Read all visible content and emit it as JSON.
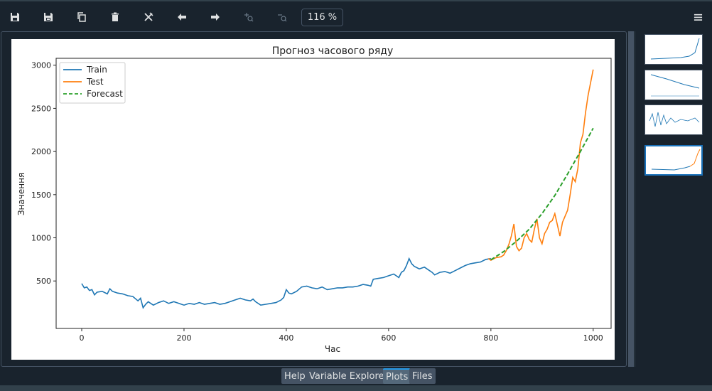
{
  "toolbar": {
    "buttons": [
      {
        "name": "save-icon",
        "label": "Save"
      },
      {
        "name": "save-all-icon",
        "label": "Save all"
      },
      {
        "name": "copy-icon",
        "label": "Copy"
      },
      {
        "name": "trash-icon",
        "label": "Remove"
      },
      {
        "name": "remove-all-icon",
        "label": "Remove all"
      },
      {
        "name": "arrow-left-icon",
        "label": "Previous"
      },
      {
        "name": "arrow-right-icon",
        "label": "Next"
      },
      {
        "name": "zoom-in-icon",
        "label": "Zoom in"
      },
      {
        "name": "zoom-out-icon",
        "label": "Zoom out"
      }
    ],
    "zoom": "116 %",
    "menu_icon": "hamburger-menu-icon"
  },
  "tabs": [
    {
      "label": "Help",
      "active": false
    },
    {
      "label": "Variable Explorer",
      "active": false
    },
    {
      "label": "Plots",
      "active": true
    },
    {
      "label": "Files",
      "active": false
    }
  ],
  "colors": {
    "train": "#1f77b4",
    "test": "#ff7f0e",
    "forecast": "#2ca02c",
    "accent": "#259ae9",
    "panel_bg": "#19232d"
  },
  "chart_data": {
    "type": "line",
    "title": "Прогноз часового ряду",
    "xlabel": "Час",
    "ylabel": "Значення",
    "xlim": [
      -50,
      1035
    ],
    "ylim": [
      -50,
      3080
    ],
    "xticks": [
      0,
      200,
      400,
      600,
      800,
      1000
    ],
    "yticks": [
      500,
      1000,
      1500,
      2000,
      2500,
      3000
    ],
    "legend_position": "upper-left",
    "grid": false,
    "series": [
      {
        "name": "Train",
        "style": "solid",
        "x": [
          0,
          5,
          10,
          15,
          20,
          25,
          30,
          40,
          50,
          55,
          60,
          70,
          80,
          90,
          100,
          110,
          115,
          120,
          125,
          130,
          140,
          150,
          160,
          170,
          180,
          190,
          200,
          210,
          220,
          230,
          240,
          250,
          260,
          270,
          280,
          290,
          300,
          310,
          320,
          330,
          335,
          340,
          350,
          360,
          370,
          380,
          390,
          395,
          400,
          405,
          410,
          420,
          430,
          440,
          450,
          460,
          470,
          480,
          490,
          500,
          510,
          520,
          530,
          540,
          550,
          560,
          565,
          570,
          580,
          590,
          600,
          610,
          620,
          625,
          630,
          635,
          640,
          645,
          650,
          660,
          670,
          680,
          685,
          690,
          700,
          710,
          720,
          730,
          740,
          750,
          760,
          770,
          780,
          790,
          800
        ],
        "y": [
          470,
          420,
          430,
          390,
          400,
          340,
          370,
          380,
          350,
          410,
          380,
          360,
          350,
          330,
          320,
          270,
          300,
          190,
          230,
          260,
          220,
          250,
          270,
          240,
          260,
          240,
          220,
          240,
          230,
          250,
          230,
          240,
          250,
          230,
          240,
          260,
          280,
          300,
          280,
          270,
          290,
          260,
          220,
          230,
          240,
          250,
          280,
          310,
          400,
          360,
          350,
          380,
          430,
          440,
          420,
          410,
          430,
          400,
          410,
          420,
          420,
          430,
          430,
          440,
          460,
          450,
          440,
          520,
          530,
          540,
          560,
          580,
          540,
          600,
          620,
          680,
          760,
          700,
          670,
          640,
          660,
          620,
          600,
          570,
          600,
          610,
          590,
          620,
          650,
          680,
          700,
          710,
          720,
          750,
          760
        ]
      },
      {
        "name": "Test",
        "style": "solid",
        "x": [
          795,
          800,
          810,
          820,
          825,
          830,
          835,
          840,
          845,
          850,
          855,
          860,
          865,
          870,
          875,
          880,
          885,
          890,
          895,
          900,
          905,
          910,
          915,
          920,
          925,
          930,
          935,
          940,
          945,
          950,
          955,
          960,
          965,
          970,
          975,
          980,
          985,
          990,
          995,
          1000
        ],
        "y": [
          760,
          740,
          770,
          780,
          800,
          850,
          920,
          1020,
          1160,
          900,
          850,
          880,
          1000,
          1050,
          980,
          950,
          1100,
          1220,
          1000,
          930,
          1050,
          1100,
          1180,
          1200,
          1280,
          1150,
          1020,
          1180,
          1250,
          1320,
          1500,
          1700,
          1650,
          1800,
          2100,
          2200,
          2450,
          2650,
          2800,
          2950
        ]
      },
      {
        "name": "Forecast",
        "style": "dashed",
        "x": [
          800,
          825,
          850,
          875,
          900,
          925,
          950,
          975,
          1000
        ],
        "y": [
          745,
          840,
          960,
          1100,
          1280,
          1490,
          1740,
          2000,
          2270
        ]
      }
    ]
  }
}
